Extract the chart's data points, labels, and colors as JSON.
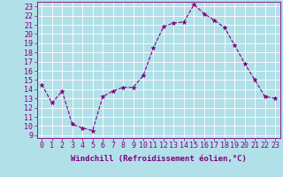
{
  "x": [
    0,
    1,
    2,
    3,
    4,
    5,
    6,
    7,
    8,
    9,
    10,
    11,
    12,
    13,
    14,
    15,
    16,
    17,
    18,
    19,
    20,
    21,
    22,
    23
  ],
  "y": [
    14.5,
    12.5,
    13.8,
    10.2,
    9.8,
    9.5,
    13.2,
    13.8,
    14.2,
    14.2,
    15.5,
    18.5,
    20.8,
    21.2,
    21.3,
    23.2,
    22.2,
    21.5,
    20.7,
    18.8,
    16.8,
    15.0,
    13.2,
    13.0
  ],
  "line_color": "#800080",
  "marker_color": "#800080",
  "bg_color": "#b2e0e8",
  "grid_color": "#ffffff",
  "xlabel": "Windchill (Refroidissement éolien,°C)",
  "ylabel_ticks": [
    9,
    10,
    11,
    12,
    13,
    14,
    15,
    16,
    17,
    18,
    19,
    20,
    21,
    22,
    23
  ],
  "ylim": [
    8.7,
    23.5
  ],
  "xlim": [
    -0.5,
    23.5
  ],
  "xticks": [
    0,
    1,
    2,
    3,
    4,
    5,
    6,
    7,
    8,
    9,
    10,
    11,
    12,
    13,
    14,
    15,
    16,
    17,
    18,
    19,
    20,
    21,
    22,
    23
  ],
  "xlabel_fontsize": 6.5,
  "tick_fontsize": 6,
  "tick_color": "#800080",
  "axis_label_color": "#800080",
  "spine_color": "#800080"
}
